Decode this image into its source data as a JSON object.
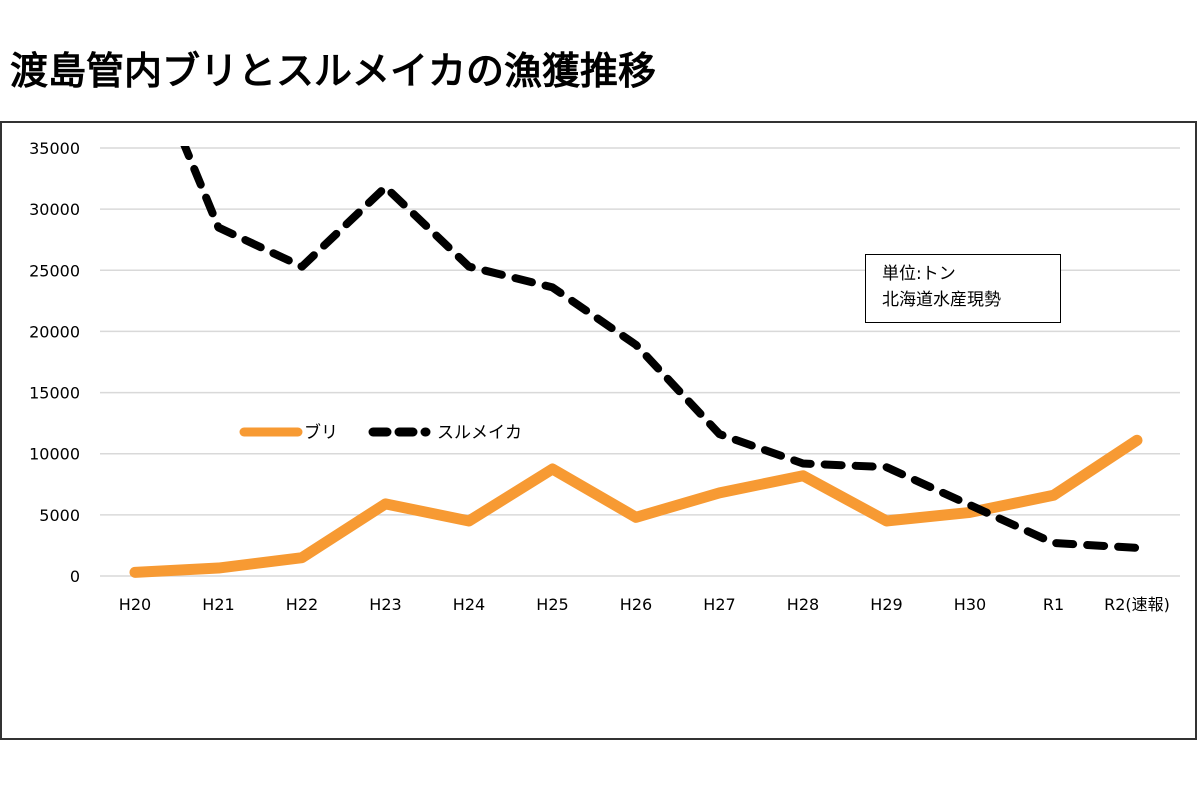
{
  "page": {
    "title": "渡島管内ブリとスルメイカの漁獲推移"
  },
  "note": {
    "line1": "単位:トン",
    "line2": "北海道水産現勢"
  },
  "colors": {
    "buri": "#F79A33",
    "surumeika": "#000000",
    "grid": "#D9D9D9"
  },
  "chart_data": {
    "type": "line",
    "title": "渡島管内ブリとスルメイカの漁獲推移",
    "xlabel": "",
    "ylabel": "",
    "unit": "トン",
    "source": "北海道水産現勢",
    "categories": [
      "H20",
      "H21",
      "H22",
      "H23",
      "H24",
      "H25",
      "H26",
      "H27",
      "H28",
      "H29",
      "H30",
      "R1",
      "R2(速報)"
    ],
    "yticks": [
      "0",
      "5000",
      "10000",
      "15000",
      "20000",
      "25000",
      "30000",
      "35000"
    ],
    "ylim": [
      0,
      35000
    ],
    "grid": true,
    "legend_position": "center-left",
    "series": [
      {
        "name": "ブリ",
        "style": "solid",
        "values": [
          300,
          650,
          1500,
          5900,
          4500,
          8750,
          4800,
          6800,
          8200,
          4500,
          5200,
          6600,
          11100
        ]
      },
      {
        "name": "スルメイカ",
        "style": "dashed",
        "values": [
          45000,
          28500,
          25300,
          31800,
          25300,
          23600,
          18900,
          11600,
          9200,
          8900,
          5800,
          2700,
          2300
        ]
      }
    ]
  }
}
